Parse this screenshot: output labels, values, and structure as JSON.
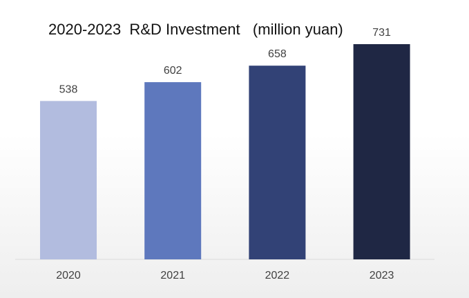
{
  "chart_data": {
    "type": "bar",
    "title": "2020-2023  R&D Investment   (million yuan)",
    "categories": [
      "2020",
      "2021",
      "2022",
      "2023"
    ],
    "values": [
      538,
      602,
      658,
      731
    ],
    "data_labels": [
      "538",
      "602",
      "658",
      "731"
    ],
    "bar_colors": [
      "#b2bcdf",
      "#5e78bd",
      "#324276",
      "#1f2744"
    ],
    "xlabel": "",
    "ylabel": "",
    "ylim": [
      0,
      800
    ],
    "y_axis_visible": false,
    "grid": false,
    "legend": "none"
  }
}
